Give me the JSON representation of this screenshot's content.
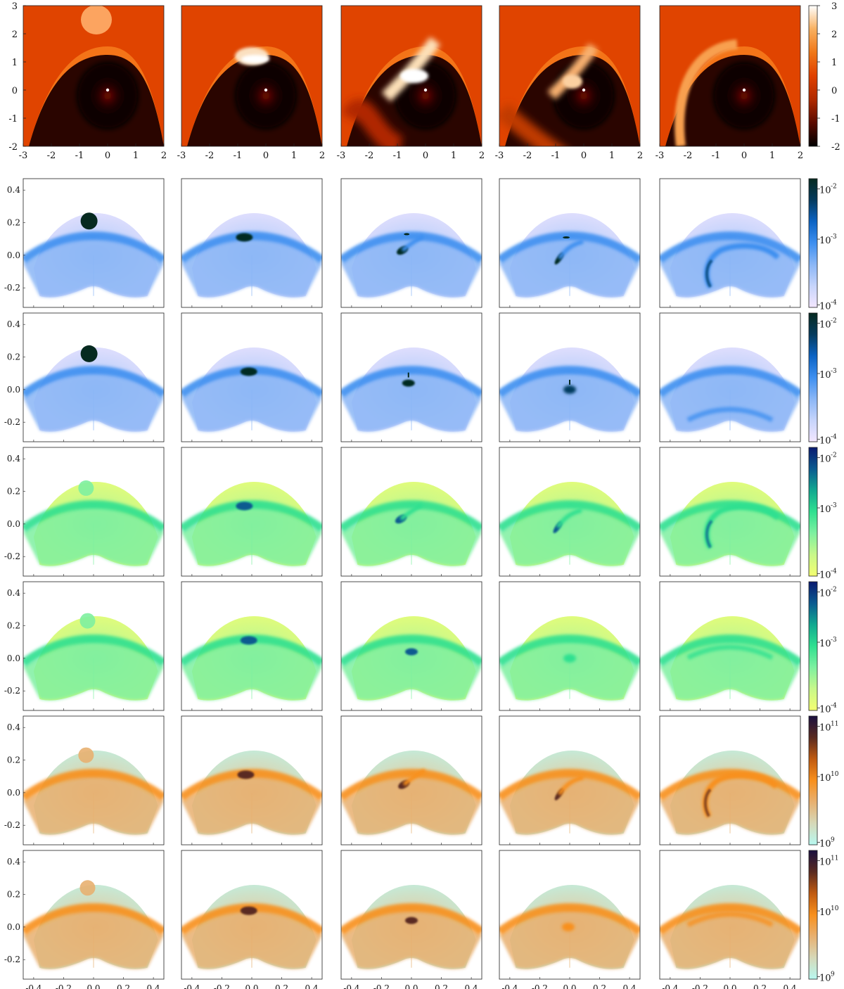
{
  "figure": {
    "columns": 5,
    "top_row": {
      "xlim": [
        -3,
        2
      ],
      "ylim": [
        -2,
        3
      ],
      "xticks": [
        -3,
        -2,
        -1,
        0,
        1,
        2
      ],
      "yticks": [
        -2,
        -1,
        0,
        1,
        2,
        3
      ],
      "colorbar": {
        "min": -2,
        "max": 3,
        "ticks": [
          -2,
          -1,
          0,
          1,
          2,
          3
        ],
        "colors": [
          "#000000",
          "#5a0a00",
          "#b02a00",
          "#e04000",
          "#f07818",
          "#f8b060",
          "#ffffff"
        ]
      },
      "background_color": "#e04400",
      "star": {
        "x": 0,
        "y": 0
      }
    },
    "map_rows": {
      "xlim": [
        -0.47,
        0.47
      ],
      "ylim": [
        -0.32,
        0.47
      ],
      "xticks": [
        -0.4,
        -0.2,
        0.0,
        0.2,
        0.4
      ],
      "xtick_labels": [
        "-0.4",
        "-0.2",
        "0.0",
        "0.2",
        "0.4"
      ],
      "yticks": [
        -0.2,
        0.0,
        0.2,
        0.4
      ],
      "ytick_labels": [
        "-0.2",
        "0.0",
        "0.2",
        "0.4"
      ]
    },
    "rows": [
      {
        "palette": "blue",
        "colorbar_ticks": [
          "10",
          "10",
          "10"
        ],
        "colorbar_exps": [
          "-2",
          "-3",
          "-4"
        ],
        "colors": [
          "#f3e6ff",
          "#c6d4fb",
          "#8ab6f6",
          "#3d8ff0",
          "#0b63c4",
          "#053b5e",
          "#062a20"
        ]
      },
      {
        "palette": "blue",
        "colorbar_ticks": [
          "10",
          "10",
          "10"
        ],
        "colorbar_exps": [
          "-2",
          "-3",
          "-4"
        ],
        "colors": [
          "#f3e6ff",
          "#c6d4fb",
          "#8ab6f6",
          "#3d8ff0",
          "#0b63c4",
          "#053b5e",
          "#062a20"
        ]
      },
      {
        "palette": "green",
        "colorbar_ticks": [
          "10",
          "10",
          "10"
        ],
        "colorbar_exps": [
          "-2",
          "-3",
          "-4"
        ],
        "colors": [
          "#f4ff70",
          "#c8f88a",
          "#7ef0a0",
          "#2fe090",
          "#10a890",
          "#0a5a90",
          "#0a1a70"
        ]
      },
      {
        "palette": "green",
        "colorbar_ticks": [
          "10",
          "10",
          "10"
        ],
        "colorbar_exps": [
          "-2",
          "-3",
          "-4"
        ],
        "colors": [
          "#f4ff70",
          "#c8f88a",
          "#7ef0a0",
          "#2fe090",
          "#10a890",
          "#0a5a90",
          "#0a1a70"
        ]
      },
      {
        "palette": "orange",
        "colorbar_ticks": [
          "10",
          "10",
          "10"
        ],
        "colorbar_exps": [
          "11",
          "10",
          "9"
        ],
        "colors": [
          "#b8f8f0",
          "#d6d8b8",
          "#e8b070",
          "#f8901c",
          "#c05a10",
          "#5a2a20",
          "#1a1040"
        ]
      },
      {
        "palette": "orange",
        "colorbar_ticks": [
          "10",
          "10",
          "10"
        ],
        "colorbar_exps": [
          "11",
          "10",
          "9"
        ],
        "colors": [
          "#b8f8f0",
          "#d6d8b8",
          "#e8b070",
          "#f8901c",
          "#c05a10",
          "#5a2a20",
          "#1a1040"
        ]
      }
    ]
  },
  "chart_data": [
    {
      "type": "heatmap",
      "panels": "row 1, five time snapshots",
      "xlim": [
        -3,
        2
      ],
      "ylim": [
        -2,
        3
      ],
      "colorbar": [
        -2,
        3
      ],
      "cloud_centers": [
        [
          -0.4,
          2.5
        ],
        [
          -0.5,
          1.2
        ],
        [
          -0.4,
          0.5
        ],
        [
          -0.4,
          0.3
        ],
        [
          -1.5,
          0.0
        ]
      ]
    },
    {
      "type": "heatmap",
      "panels": "rows 2-7, five time snapshots each",
      "xlim": [
        -0.47,
        0.47
      ],
      "ylim": [
        -0.32,
        0.47
      ],
      "blob_centers": [
        [
          [
            -0.03,
            0.21
          ],
          [
            -0.05,
            0.11
          ],
          [
            -0.06,
            0.03
          ],
          [
            -0.07,
            -0.02
          ],
          [
            -0.15,
            -0.1
          ]
        ],
        [
          [
            -0.03,
            0.22
          ],
          [
            -0.02,
            0.11
          ],
          [
            -0.02,
            0.04
          ],
          [
            0.0,
            0.0
          ],
          [
            0.0,
            -0.1
          ]
        ],
        [
          [
            -0.05,
            0.22
          ],
          [
            -0.05,
            0.11
          ],
          [
            -0.07,
            0.03
          ],
          [
            -0.08,
            -0.02
          ],
          [
            -0.15,
            -0.05
          ]
        ],
        [
          [
            -0.04,
            0.23
          ],
          [
            -0.02,
            0.11
          ],
          [
            0.0,
            0.04
          ],
          [
            0.0,
            0.0
          ],
          [
            0.0,
            0.09
          ]
        ],
        [
          [
            -0.05,
            0.23
          ],
          [
            -0.04,
            0.11
          ],
          [
            -0.05,
            0.05
          ],
          [
            -0.07,
            -0.01
          ],
          [
            -0.16,
            -0.05
          ]
        ],
        [
          [
            -0.04,
            0.24
          ],
          [
            -0.02,
            0.1
          ],
          [
            0.0,
            0.04
          ],
          [
            -0.01,
            0.0
          ],
          [
            0.0,
            0.1
          ]
        ]
      ]
    }
  ]
}
